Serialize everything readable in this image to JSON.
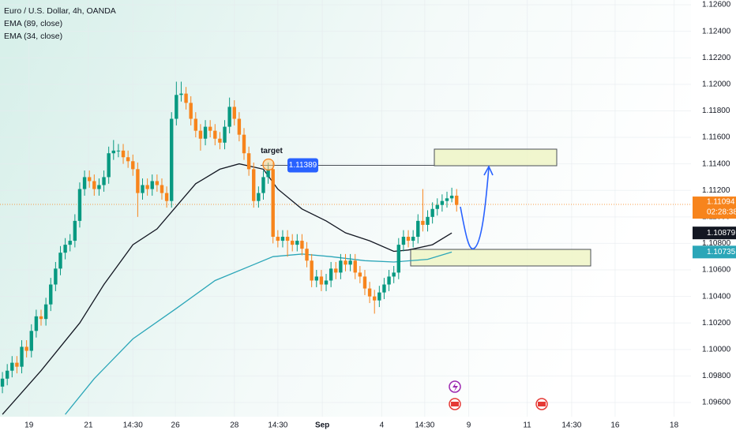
{
  "chart_data": {
    "type": "candlestick",
    "title": "Euro / U.S. Dollar, 4h, OANDA",
    "x": [
      0,
      1,
      2,
      3,
      4,
      5,
      6,
      7,
      8,
      9,
      10,
      11,
      12,
      13,
      14,
      15,
      16,
      17,
      18,
      19,
      20,
      21,
      22,
      23,
      24,
      25,
      26,
      27,
      28,
      29,
      30,
      31,
      32,
      33,
      34,
      35,
      36,
      37,
      38,
      39,
      40,
      41,
      42,
      43,
      44,
      45,
      46,
      47,
      48,
      49,
      50,
      51,
      52,
      53,
      54,
      55,
      56,
      57,
      58,
      59,
      60,
      61,
      62,
      63,
      64,
      65,
      66,
      67,
      68,
      69,
      70,
      71,
      72,
      73,
      74,
      75,
      76,
      77,
      78,
      79,
      80,
      81,
      82,
      83,
      84,
      85,
      86,
      87,
      88,
      89,
      90,
      91,
      92,
      93,
      94
    ],
    "open": [
      1.0972,
      1.0978,
      1.0984,
      1.099,
      1.0987,
      1.1002,
      1.0999,
      1.1014,
      1.1025,
      1.1023,
      1.1034,
      1.1049,
      1.1061,
      1.1073,
      1.1079,
      1.1082,
      1.1097,
      1.1121,
      1.113,
      1.1127,
      1.1121,
      1.1124,
      1.113,
      1.1148,
      1.115,
      1.115,
      1.1145,
      1.1142,
      1.1136,
      1.1118,
      1.1124,
      1.1121,
      1.1127,
      1.1124,
      1.1118,
      1.1112,
      1.1174,
      1.1192,
      1.1193,
      1.1186,
      1.1174,
      1.1165,
      1.1159,
      1.1168,
      1.1165,
      1.1159,
      1.1156,
      1.1168,
      1.1183,
      1.1174,
      1.1162,
      1.1148,
      1.1136,
      1.1112,
      1.1118,
      1.113,
      1.1136,
      1.1085,
      1.1082,
      1.1085,
      1.1082,
      1.1079,
      1.1082,
      1.1076,
      1.1067,
      1.1052,
      1.1055,
      1.1049,
      1.1052,
      1.1061,
      1.1058,
      1.1067,
      1.1064,
      1.1067,
      1.1058,
      1.1055,
      1.1046,
      1.104,
      1.1037,
      1.1043,
      1.1049,
      1.1055,
      1.1058,
      1.1079,
      1.1085,
      1.1082,
      1.1085,
      1.1097,
      1.1094,
      1.11,
      1.1106,
      1.1109,
      1.1112,
      1.1114,
      1.1116
    ],
    "high": [
      1.0983,
      1.0989,
      1.0995,
      1.0995,
      1.1007,
      1.1007,
      1.1019,
      1.103,
      1.103,
      1.1039,
      1.1054,
      1.1066,
      1.1078,
      1.1084,
      1.1087,
      1.1102,
      1.1126,
      1.1135,
      1.1135,
      1.1132,
      1.1129,
      1.1135,
      1.1153,
      1.1158,
      1.1155,
      1.1155,
      1.115,
      1.1147,
      1.1141,
      1.1129,
      1.1129,
      1.1132,
      1.1132,
      1.1129,
      1.1123,
      1.1179,
      1.1202,
      1.1202,
      1.1198,
      1.1191,
      1.1179,
      1.117,
      1.1173,
      1.1173,
      1.117,
      1.1164,
      1.1173,
      1.119,
      1.1188,
      1.1179,
      1.1167,
      1.1153,
      1.1141,
      1.1123,
      1.1135,
      1.1141,
      1.1141,
      1.109,
      1.109,
      1.109,
      1.1087,
      1.1087,
      1.1087,
      1.1081,
      1.1072,
      1.106,
      1.106,
      1.1057,
      1.1066,
      1.1066,
      1.1072,
      1.1072,
      1.1072,
      1.1072,
      1.1063,
      1.106,
      1.1051,
      1.1045,
      1.1048,
      1.1054,
      1.106,
      1.1063,
      1.1084,
      1.109,
      1.109,
      1.109,
      1.1102,
      1.1121,
      1.1105,
      1.1111,
      1.1114,
      1.1117,
      1.1119,
      1.1122,
      1.1121
    ],
    "low": [
      1.0967,
      1.0973,
      1.0979,
      1.0982,
      1.0982,
      1.0994,
      1.0994,
      1.1009,
      1.1018,
      1.1018,
      1.1029,
      1.1044,
      1.1056,
      1.1068,
      1.1074,
      1.1077,
      1.1092,
      1.1116,
      1.1122,
      1.1116,
      1.1116,
      1.1119,
      1.1125,
      1.1143,
      1.1145,
      1.114,
      1.1137,
      1.1131,
      1.11,
      1.1113,
      1.1116,
      1.1116,
      1.1119,
      1.1113,
      1.1107,
      1.1107,
      1.1169,
      1.1187,
      1.1181,
      1.1169,
      1.116,
      1.115,
      1.1154,
      1.116,
      1.1154,
      1.1151,
      1.1151,
      1.1163,
      1.1169,
      1.1157,
      1.1143,
      1.1131,
      1.1107,
      1.1107,
      1.1113,
      1.1125,
      1.108,
      1.1077,
      1.1077,
      1.107,
      1.1074,
      1.1074,
      1.1071,
      1.1062,
      1.1047,
      1.1047,
      1.1044,
      1.1044,
      1.1047,
      1.1053,
      1.1053,
      1.1059,
      1.1059,
      1.1053,
      1.105,
      1.1041,
      1.1035,
      1.1027,
      1.1032,
      1.1038,
      1.1044,
      1.105,
      1.1053,
      1.1074,
      1.1077,
      1.1077,
      1.108,
      1.1089,
      1.1089,
      1.1095,
      1.1101,
      1.1104,
      1.1107,
      1.1111,
      1.1104
    ],
    "close": [
      1.0978,
      1.0984,
      1.099,
      1.0987,
      1.1002,
      1.0999,
      1.1014,
      1.1025,
      1.1023,
      1.1034,
      1.1049,
      1.1061,
      1.1073,
      1.1079,
      1.1082,
      1.1097,
      1.1121,
      1.113,
      1.1127,
      1.1121,
      1.1124,
      1.113,
      1.1148,
      1.115,
      1.115,
      1.1145,
      1.1142,
      1.1136,
      1.1118,
      1.1124,
      1.1121,
      1.1127,
      1.1124,
      1.1118,
      1.1112,
      1.1174,
      1.1192,
      1.1193,
      1.1186,
      1.1174,
      1.1165,
      1.1159,
      1.1168,
      1.1165,
      1.1159,
      1.1156,
      1.1168,
      1.1183,
      1.1174,
      1.1162,
      1.1148,
      1.1136,
      1.1112,
      1.1118,
      1.113,
      1.1136,
      1.1085,
      1.1082,
      1.1085,
      1.1082,
      1.1079,
      1.1082,
      1.1076,
      1.1067,
      1.1052,
      1.1055,
      1.1049,
      1.1052,
      1.1061,
      1.1058,
      1.1067,
      1.1064,
      1.1067,
      1.1058,
      1.1055,
      1.1046,
      1.104,
      1.1037,
      1.1043,
      1.1049,
      1.1055,
      1.1058,
      1.1079,
      1.1085,
      1.1082,
      1.1085,
      1.1097,
      1.1094,
      1.11,
      1.1106,
      1.1109,
      1.1112,
      1.1114,
      1.1116,
      1.1109
    ],
    "up_color": "#089981",
    "down_color": "#f7841c",
    "last_price": 1.11094,
    "countdown": "02:28:38",
    "series": [
      {
        "name": "EMA (89, close)",
        "color": "#2ba6b8",
        "x": [
          13,
          19,
          27,
          36,
          44,
          52,
          56,
          62,
          68,
          75,
          81,
          88,
          93
        ],
        "values": [
          1.0951,
          1.0978,
          1.1008,
          1.1031,
          1.1052,
          1.1064,
          1.107,
          1.1072,
          1.107,
          1.1067,
          1.1066,
          1.1068,
          1.10735
        ],
        "last_value": 1.10735
      },
      {
        "name": "EMA (34, close)",
        "color": "#131722",
        "x": [
          0,
          8,
          16,
          21,
          27,
          32,
          36,
          40,
          45,
          49,
          54,
          57,
          62,
          67,
          71,
          76,
          81,
          84,
          89,
          93
        ],
        "values": [
          1.0951,
          1.0984,
          1.102,
          1.1049,
          1.1079,
          1.1091,
          1.1108,
          1.1125,
          1.1136,
          1.114,
          1.1136,
          1.1121,
          1.1106,
          1.1097,
          1.1088,
          1.1082,
          1.1074,
          1.1075,
          1.1079,
          1.10879
        ],
        "last_value": 1.10879
      }
    ],
    "annotation": {
      "text": "target",
      "level": 1.11389
    },
    "xlim": [
      -0.5,
      142.5
    ],
    "ylim": [
      1.09493,
      1.12636
    ],
    "xticks": [
      {
        "value": 5.5,
        "label": "19"
      },
      {
        "value": 17.8,
        "label": "21"
      },
      {
        "value": 27,
        "label": "14:30"
      },
      {
        "value": 35.8,
        "label": "26"
      },
      {
        "value": 48,
        "label": "28"
      },
      {
        "value": 57,
        "label": "14:30"
      },
      {
        "value": 66.2,
        "label": "Sep"
      },
      {
        "value": 78.5,
        "label": "4"
      },
      {
        "value": 87.4,
        "label": "14:30"
      },
      {
        "value": 96.5,
        "label": "9"
      },
      {
        "value": 108.6,
        "label": "11"
      },
      {
        "value": 117.8,
        "label": "14:30"
      },
      {
        "value": 126.8,
        "label": "16"
      },
      {
        "value": 139,
        "label": "18"
      }
    ],
    "yticks": [
      {
        "value": 1.126,
        "label": "1.12600"
      },
      {
        "value": 1.124,
        "label": "1.12400"
      },
      {
        "value": 1.122,
        "label": "1.12200"
      },
      {
        "value": 1.12,
        "label": "1.12000"
      },
      {
        "value": 1.118,
        "label": "1.11800"
      },
      {
        "value": 1.116,
        "label": "1.11600"
      },
      {
        "value": 1.114,
        "label": "1.11400"
      },
      {
        "value": 1.112,
        "label": "1.11200"
      },
      {
        "value": 1.11,
        "label": "1.11000"
      },
      {
        "value": 1.108,
        "label": "1.10800"
      },
      {
        "value": 1.106,
        "label": "1.10600"
      },
      {
        "value": 1.104,
        "label": "1.10400"
      },
      {
        "value": 1.102,
        "label": "1.10200"
      },
      {
        "value": 1.1,
        "label": "1.10000"
      },
      {
        "value": 1.098,
        "label": "1.09800"
      },
      {
        "value": 1.096,
        "label": "1.09600"
      }
    ],
    "grid": true
  }
}
